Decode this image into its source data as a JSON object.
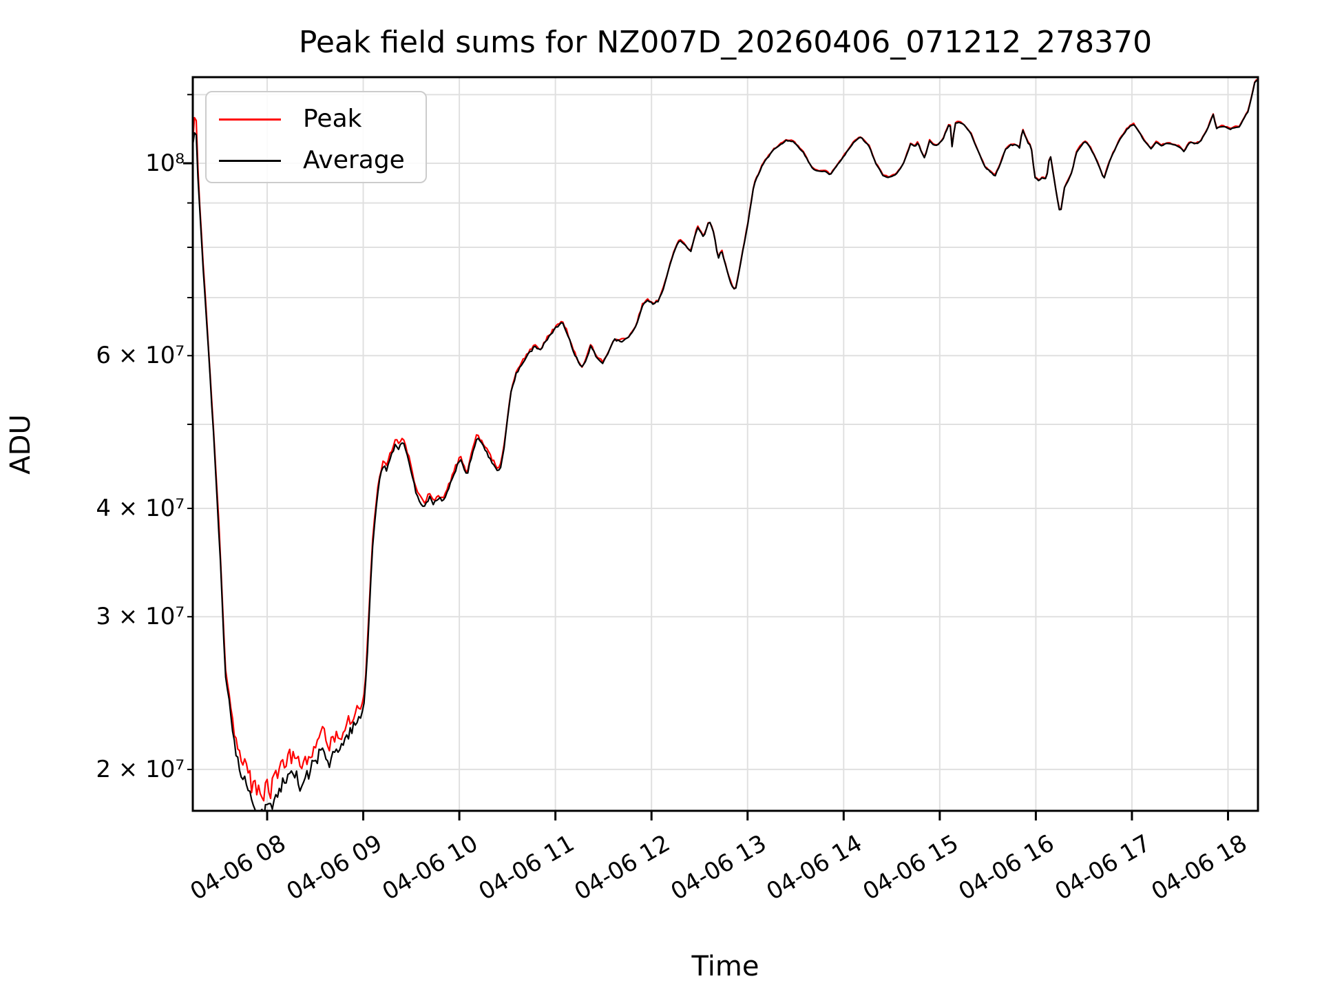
{
  "title": "Peak field sums for NZ007D_20260406_071212_278370",
  "xlabel": "Time",
  "ylabel": "ADU",
  "legend": {
    "items": [
      {
        "label": "Peak",
        "color": "#ff0000"
      },
      {
        "label": "Average",
        "color": "#000000"
      }
    ]
  },
  "colors": {
    "grid": "#e0e0e0",
    "spine": "#000000",
    "peak": "#ff0000",
    "average": "#000000",
    "legend_edge": "#cccccc"
  },
  "chart_data": {
    "type": "line",
    "title": "Peak field sums for NZ007D_20260406_071212_278370",
    "xlabel": "Time",
    "ylabel": "ADU",
    "yscale": "log",
    "grid": true,
    "legend_position": "upper left",
    "x_unit": "decimal hours on 2026-04-06",
    "xlim": [
      7.2261,
      18.3118
    ],
    "ylim": [
      17920000.0,
      125720000.0
    ],
    "x_ticks": [
      {
        "hour": 8,
        "label": "04-06 08"
      },
      {
        "hour": 9,
        "label": "04-06 09"
      },
      {
        "hour": 10,
        "label": "04-06 10"
      },
      {
        "hour": 11,
        "label": "04-06 11"
      },
      {
        "hour": 12,
        "label": "04-06 12"
      },
      {
        "hour": 13,
        "label": "04-06 13"
      },
      {
        "hour": 14,
        "label": "04-06 14"
      },
      {
        "hour": 15,
        "label": "04-06 15"
      },
      {
        "hour": 16,
        "label": "04-06 16"
      },
      {
        "hour": 17,
        "label": "04-06 17"
      },
      {
        "hour": 18,
        "label": "04-06 18"
      }
    ],
    "y_ticks": [
      {
        "value": 120000000.0,
        "label": "",
        "major": false
      },
      {
        "value": 100000000.0,
        "label": "10⁸",
        "major": true
      },
      {
        "value": 90000000.0,
        "label": "",
        "major": false
      },
      {
        "value": 80000000.0,
        "label": "",
        "major": false
      },
      {
        "value": 70000000.0,
        "label": "",
        "major": false
      },
      {
        "value": 60000000.0,
        "label": "6 × 10⁷",
        "major": false
      },
      {
        "value": 50000000.0,
        "label": "",
        "major": false
      },
      {
        "value": 40000000.0,
        "label": "4 × 10⁷",
        "major": false
      },
      {
        "value": 30000000.0,
        "label": "3 × 10⁷",
        "major": false
      },
      {
        "value": 20000000.0,
        "label": "2 × 10⁷",
        "major": false
      }
    ],
    "series": [
      {
        "name": "Peak",
        "color": "#ff0000",
        "derived_from": "Average",
        "excess_fraction": [
          [
            7.226,
            0.01
          ],
          [
            7.243,
            0.04
          ],
          [
            7.262,
            0.04
          ],
          [
            7.29,
            0.015
          ],
          [
            7.4,
            0.012
          ],
          [
            7.5,
            0.02
          ],
          [
            7.6,
            0.03
          ],
          [
            7.7,
            0.045
          ],
          [
            7.85,
            0.055
          ],
          [
            8.0,
            0.06
          ],
          [
            8.2,
            0.052
          ],
          [
            8.5,
            0.046
          ],
          [
            8.8,
            0.038
          ],
          [
            8.98,
            0.03
          ],
          [
            9.05,
            0.015
          ],
          [
            9.2,
            0.011
          ],
          [
            9.5,
            0.009
          ],
          [
            9.9,
            0.008
          ],
          [
            10.3,
            0.007
          ],
          [
            10.6,
            0.0045
          ],
          [
            11.0,
            0.0035
          ],
          [
            11.5,
            0.003
          ],
          [
            12.0,
            0.0025
          ],
          [
            13.0,
            0.002
          ],
          [
            14.0,
            0.0018
          ],
          [
            16.0,
            0.0018
          ],
          [
            18.312,
            0.002
          ]
        ]
      },
      {
        "name": "Average",
        "color": "#000000",
        "control_points": [
          [
            7.226,
            105000000.0
          ],
          [
            7.24,
            108000000.0
          ],
          [
            7.26,
            109500000.0
          ],
          [
            7.276,
            98000000.0
          ],
          [
            7.305,
            86000000.0
          ],
          [
            7.334,
            75500000.0
          ],
          [
            7.369,
            66000000.0
          ],
          [
            7.405,
            57000000.0
          ],
          [
            7.441,
            49000000.0
          ],
          [
            7.477,
            41500000.0
          ],
          [
            7.512,
            35000000.0
          ],
          [
            7.563,
            25700000.0
          ],
          [
            7.6,
            24200000.0
          ],
          [
            7.642,
            21800000.0
          ],
          [
            7.706,
            20200000.0
          ],
          [
            7.778,
            19200000.0
          ],
          [
            7.835,
            18300000.0
          ],
          [
            7.907,
            18000000.0
          ],
          [
            7.955,
            17600000.0
          ],
          [
            8.0,
            18300000.0
          ],
          [
            8.03,
            17900000.0
          ],
          [
            8.08,
            18600000.0
          ],
          [
            8.15,
            19100000.0
          ],
          [
            8.23,
            19600000.0
          ],
          [
            8.301,
            19900000.0
          ],
          [
            8.34,
            19000000.0
          ],
          [
            8.38,
            19300000.0
          ],
          [
            8.45,
            20000000.0
          ],
          [
            8.52,
            20600000.0
          ],
          [
            8.552,
            21400000.0
          ],
          [
            8.6,
            20900000.0
          ],
          [
            8.638,
            20300000.0
          ],
          [
            8.7,
            20800000.0
          ],
          [
            8.78,
            21200000.0
          ],
          [
            8.85,
            22000000.0
          ],
          [
            8.92,
            22600000.0
          ],
          [
            8.97,
            22800000.0
          ],
          [
            9.0,
            23500000.0
          ],
          [
            9.03,
            25500000.0
          ],
          [
            9.06,
            30000000.0
          ],
          [
            9.1,
            36500000.0
          ],
          [
            9.14,
            41000000.0
          ],
          [
            9.18,
            43800000.0
          ],
          [
            9.21,
            44800000.0
          ],
          [
            9.24,
            44200000.0
          ],
          [
            9.29,
            46000000.0
          ],
          [
            9.34,
            47500000.0
          ],
          [
            9.37,
            46800000.0
          ],
          [
            9.41,
            47900000.0
          ],
          [
            9.45,
            46600000.0
          ],
          [
            9.5,
            44200000.0
          ],
          [
            9.55,
            41800000.0
          ],
          [
            9.6,
            40600000.0
          ],
          [
            9.64,
            40300000.0
          ],
          [
            9.69,
            41200000.0
          ],
          [
            9.73,
            40500000.0
          ],
          [
            9.78,
            41200000.0
          ],
          [
            9.83,
            40700000.0
          ],
          [
            9.89,
            42200000.0
          ],
          [
            9.94,
            43800000.0
          ],
          [
            10.006,
            45500000.0
          ],
          [
            10.04,
            44800000.0
          ],
          [
            10.078,
            43500000.0
          ],
          [
            10.13,
            46000000.0
          ],
          [
            10.18,
            48200000.0
          ],
          [
            10.22,
            47800000.0
          ],
          [
            10.28,
            46500000.0
          ],
          [
            10.33,
            45500000.0
          ],
          [
            10.38,
            44500000.0
          ],
          [
            10.422,
            44200000.0
          ],
          [
            10.46,
            46500000.0
          ],
          [
            10.5,
            50500000.0
          ],
          [
            10.544,
            55000000.0
          ],
          [
            10.594,
            57200000.0
          ],
          [
            10.702,
            60000000.0
          ],
          [
            10.788,
            61500000.0
          ],
          [
            10.84,
            60800000.0
          ],
          [
            10.92,
            62800000.0
          ],
          [
            11.0,
            64500000.0
          ],
          [
            11.074,
            65600000.0
          ],
          [
            11.12,
            63800000.0
          ],
          [
            11.19,
            60600000.0
          ],
          [
            11.27,
            58000000.0
          ],
          [
            11.325,
            59500000.0
          ],
          [
            11.37,
            61700000.0
          ],
          [
            11.42,
            60000000.0
          ],
          [
            11.49,
            58800000.0
          ],
          [
            11.55,
            60500000.0
          ],
          [
            11.61,
            62600000.0
          ],
          [
            11.69,
            62400000.0
          ],
          [
            11.76,
            63000000.0
          ],
          [
            11.84,
            65000000.0
          ],
          [
            11.91,
            68800000.0
          ],
          [
            11.97,
            69500000.0
          ],
          [
            12.02,
            68700000.0
          ],
          [
            12.07,
            69400000.0
          ],
          [
            12.12,
            71500000.0
          ],
          [
            12.18,
            75500000.0
          ],
          [
            12.24,
            79500000.0
          ],
          [
            12.292,
            81600000.0
          ],
          [
            12.35,
            80500000.0
          ],
          [
            12.407,
            79000000.0
          ],
          [
            12.478,
            84500000.0
          ],
          [
            12.543,
            82200000.0
          ],
          [
            12.6,
            85800000.0
          ],
          [
            12.65,
            83000000.0
          ],
          [
            12.693,
            77500000.0
          ],
          [
            12.729,
            79500000.0
          ],
          [
            12.78,
            75500000.0
          ],
          [
            12.83,
            72500000.0
          ],
          [
            12.872,
            71300000.0
          ],
          [
            12.93,
            77000000.0
          ],
          [
            13.009,
            86000000.0
          ],
          [
            13.066,
            94500000.0
          ],
          [
            13.159,
            99800000.0
          ],
          [
            13.266,
            103500000.0
          ],
          [
            13.403,
            106300000.0
          ],
          [
            13.474,
            106000000.0
          ],
          [
            13.582,
            102800000.0
          ],
          [
            13.675,
            98500000.0
          ],
          [
            13.74,
            97900000.0
          ],
          [
            13.818,
            97800000.0
          ],
          [
            13.86,
            97000000.0
          ],
          [
            13.983,
            101200000.0
          ],
          [
            14.105,
            105800000.0
          ],
          [
            14.177,
            107200000.0
          ],
          [
            14.263,
            104700000.0
          ],
          [
            14.334,
            100000000.0
          ],
          [
            14.41,
            96800000.0
          ],
          [
            14.47,
            96300000.0
          ],
          [
            14.549,
            97200000.0
          ],
          [
            14.62,
            99800000.0
          ],
          [
            14.7,
            105500000.0
          ],
          [
            14.74,
            104400000.0
          ],
          [
            14.771,
            105700000.0
          ],
          [
            14.81,
            103000000.0
          ],
          [
            14.843,
            101300000.0
          ],
          [
            14.893,
            106200000.0
          ],
          [
            14.94,
            104800000.0
          ],
          [
            14.986,
            105000000.0
          ],
          [
            15.036,
            106800000.0
          ],
          [
            15.09,
            110500000.0
          ],
          [
            15.108,
            111000000.0
          ],
          [
            15.13,
            103800000.0
          ],
          [
            15.158,
            111300000.0
          ],
          [
            15.21,
            111500000.0
          ],
          [
            15.251,
            110800000.0
          ],
          [
            15.323,
            108200000.0
          ],
          [
            15.395,
            103500000.0
          ],
          [
            15.47,
            99000000.0
          ],
          [
            15.516,
            98000000.0
          ],
          [
            15.574,
            96600000.0
          ],
          [
            15.62,
            99200000.0
          ],
          [
            15.681,
            103600000.0
          ],
          [
            15.74,
            105000000.0
          ],
          [
            15.803,
            104900000.0
          ],
          [
            15.83,
            104200000.0
          ],
          [
            15.86,
            109500000.0
          ],
          [
            15.918,
            105600000.0
          ],
          [
            15.95,
            104900000.0
          ],
          [
            15.989,
            96200000.0
          ],
          [
            16.03,
            95500000.0
          ],
          [
            16.07,
            96200000.0
          ],
          [
            16.11,
            95800000.0
          ],
          [
            16.147,
            102800000.0
          ],
          [
            16.19,
            96000000.0
          ],
          [
            16.23,
            90000000.0
          ],
          [
            16.254,
            87200000.0
          ],
          [
            16.3,
            94000000.0
          ],
          [
            16.347,
            96000000.0
          ],
          [
            16.38,
            98000000.0
          ],
          [
            16.42,
            102800000.0
          ],
          [
            16.47,
            104800000.0
          ],
          [
            16.519,
            106100000.0
          ],
          [
            16.57,
            104000000.0
          ],
          [
            16.63,
            101000000.0
          ],
          [
            16.68,
            97800000.0
          ],
          [
            16.706,
            95700000.0
          ],
          [
            16.76,
            100000000.0
          ],
          [
            16.81,
            103000000.0
          ],
          [
            16.878,
            106800000.0
          ],
          [
            16.95,
            109500000.0
          ],
          [
            16.985,
            110400000.0
          ],
          [
            17.02,
            110900000.0
          ],
          [
            17.093,
            107800000.0
          ],
          [
            17.13,
            106000000.0
          ],
          [
            17.17,
            104800000.0
          ],
          [
            17.2,
            103800000.0
          ],
          [
            17.25,
            105800000.0
          ],
          [
            17.31,
            104800000.0
          ],
          [
            17.37,
            105500000.0
          ],
          [
            17.44,
            105000000.0
          ],
          [
            17.5,
            104400000.0
          ],
          [
            17.544,
            103100000.0
          ],
          [
            17.6,
            105800000.0
          ],
          [
            17.66,
            105300000.0
          ],
          [
            17.709,
            105800000.0
          ],
          [
            17.781,
            109200000.0
          ],
          [
            17.82,
            112000000.0
          ],
          [
            17.845,
            114000000.0
          ],
          [
            17.88,
            109600000.0
          ],
          [
            17.93,
            110300000.0
          ],
          [
            17.98,
            110000000.0
          ],
          [
            18.024,
            109500000.0
          ],
          [
            18.08,
            110000000.0
          ],
          [
            18.12,
            110200000.0
          ],
          [
            18.168,
            112800000.0
          ],
          [
            18.211,
            114800000.0
          ],
          [
            18.261,
            121500000.0
          ],
          [
            18.29,
            125500000.0
          ],
          [
            18.312,
            122200000.0
          ]
        ]
      }
    ],
    "noise_fraction": [
      [
        7.226,
        0.002
      ],
      [
        7.4,
        0.003
      ],
      [
        7.55,
        0.008
      ],
      [
        7.7,
        0.014
      ],
      [
        7.85,
        0.02
      ],
      [
        8.0,
        0.022
      ],
      [
        8.2,
        0.02
      ],
      [
        8.5,
        0.017
      ],
      [
        8.8,
        0.014
      ],
      [
        8.98,
        0.012
      ],
      [
        9.05,
        0.007
      ],
      [
        9.3,
        0.006
      ],
      [
        9.7,
        0.0055
      ],
      [
        10.1,
        0.005
      ],
      [
        10.5,
        0.0035
      ],
      [
        11.0,
        0.003
      ],
      [
        11.6,
        0.0028
      ],
      [
        12.2,
        0.002
      ],
      [
        13.0,
        0.0015
      ],
      [
        14.0,
        0.0012
      ],
      [
        15.0,
        0.0012
      ],
      [
        16.0,
        0.0013
      ],
      [
        17.0,
        0.0012
      ],
      [
        18.0,
        0.0012
      ],
      [
        18.312,
        0.0015
      ]
    ],
    "render": {
      "seed": 123457,
      "step_hours": 0.018,
      "peak_noise_factor": 1.25
    }
  }
}
